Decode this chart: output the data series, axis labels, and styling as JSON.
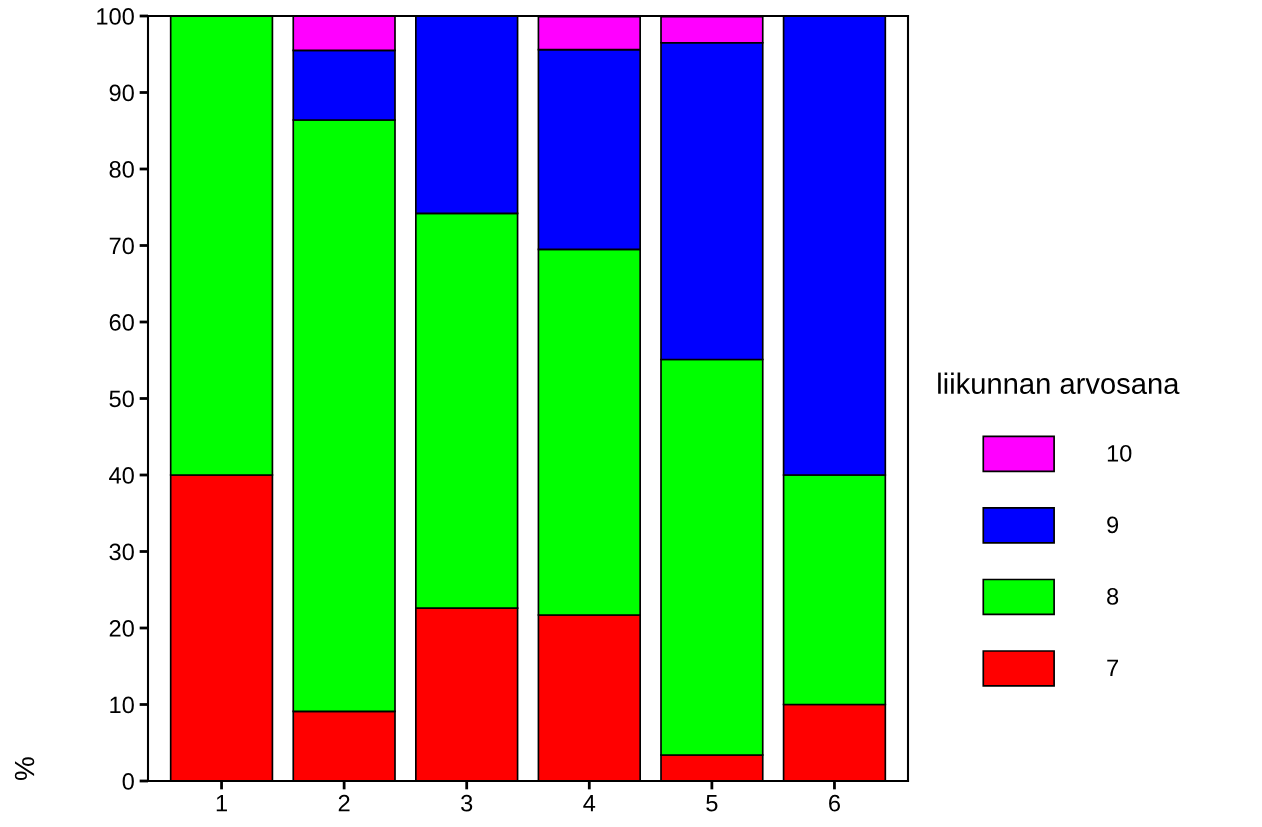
{
  "chart_data": {
    "type": "bar",
    "stacked": true,
    "ylabel": "%",
    "legend_title": "liikunnan arvosana",
    "legend": "right",
    "categories": [
      "1",
      "2",
      "3",
      "4",
      "5",
      "6"
    ],
    "series": [
      {
        "name": "7",
        "color": "#ff0000",
        "values": [
          40,
          9.1,
          22.6,
          21.7,
          3.4,
          10
        ]
      },
      {
        "name": "8",
        "color": "#00ff00",
        "values": [
          60,
          77.3,
          51.6,
          47.8,
          51.7,
          30
        ]
      },
      {
        "name": "9",
        "color": "#0000ff",
        "values": [
          null,
          9.1,
          25.8,
          26.1,
          41.4,
          60
        ]
      },
      {
        "name": "10",
        "color": "#ff00ff",
        "values": [
          null,
          4.5,
          null,
          4.3,
          3.4,
          null
        ]
      }
    ],
    "ylim": [
      0,
      100
    ],
    "yticks": [
      0,
      10,
      20,
      30,
      40,
      50,
      60,
      70,
      80,
      90,
      100
    ],
    "grid": false
  }
}
